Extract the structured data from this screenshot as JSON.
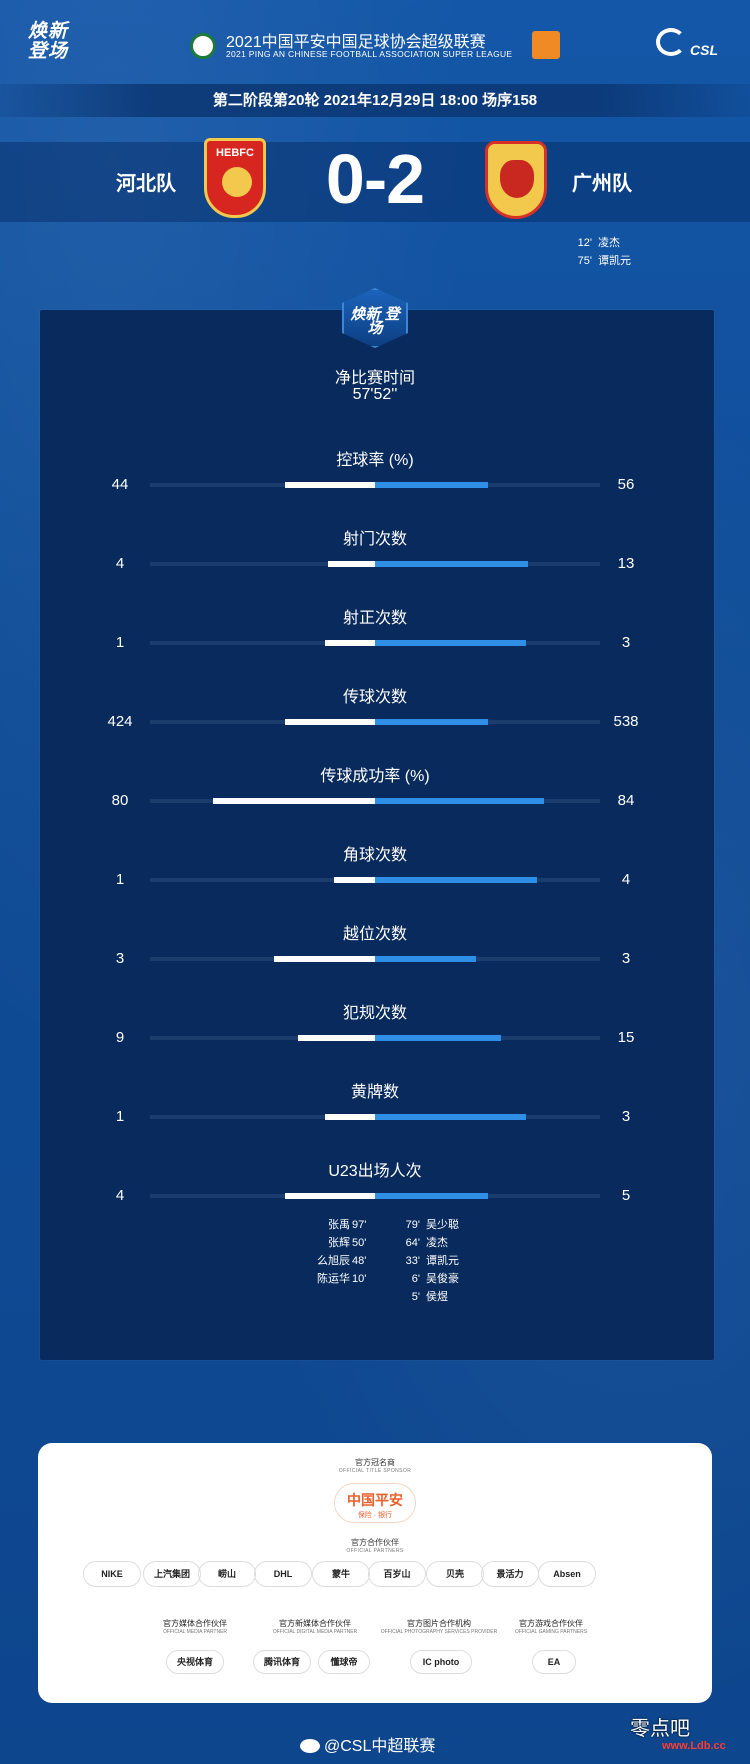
{
  "header": {
    "left_logo": "焕新 登场",
    "league_title": "2021中国平安中国足球协会超级联赛",
    "league_subtitle": "2021 PING AN CHINESE FOOTBALL ASSOCIATION SUPER LEAGUE",
    "right_logo": "CSL"
  },
  "match": {
    "info": "第二阶段第20轮  2021年12月29日 18:00 场序158",
    "home_team": "河北队",
    "away_team": "广州队",
    "home_crest_text": "HEBFC",
    "score": "0-2",
    "scorers": [
      {
        "minute": "12'",
        "name": "凌杰"
      },
      {
        "minute": "75'",
        "name": "谭凯元"
      }
    ]
  },
  "panel": {
    "emblem": "焕新 登场",
    "net_time_label": "净比赛时间",
    "net_time_value": "57'52''"
  },
  "stats": [
    {
      "label": "控球率 (%)",
      "home": "44",
      "away": "56",
      "home_val": 44,
      "away_val": 56
    },
    {
      "label": "射门次数",
      "home": "4",
      "away": "13",
      "home_val": 4,
      "away_val": 13
    },
    {
      "label": "射正次数",
      "home": "1",
      "away": "3",
      "home_val": 1,
      "away_val": 3
    },
    {
      "label": "传球次数",
      "home": "424",
      "away": "538",
      "home_val": 424,
      "away_val": 538
    },
    {
      "label": "传球成功率 (%)",
      "home": "80",
      "away": "84",
      "home_val": 80,
      "away_val": 84
    },
    {
      "label": "角球次数",
      "home": "1",
      "away": "4",
      "home_val": 1,
      "away_val": 4
    },
    {
      "label": "越位次数",
      "home": "3",
      "away": "3",
      "home_val": 3,
      "away_val": 3
    },
    {
      "label": "犯规次数",
      "home": "9",
      "away": "15",
      "home_val": 9,
      "away_val": 15
    },
    {
      "label": "黄牌数",
      "home": "1",
      "away": "3",
      "home_val": 1,
      "away_val": 3
    },
    {
      "label": "U23出场人次",
      "home": "4",
      "away": "5",
      "home_val": 4,
      "away_val": 5
    }
  ],
  "bar_fractions": [
    {
      "home": 0.4,
      "away": 0.5
    },
    {
      "home": 0.21,
      "away": 0.68
    },
    {
      "home": 0.22,
      "away": 0.67
    },
    {
      "home": 0.4,
      "away": 0.5
    },
    {
      "home": 0.72,
      "away": 0.75
    },
    {
      "home": 0.18,
      "away": 0.72
    },
    {
      "home": 0.45,
      "away": 0.45
    },
    {
      "home": 0.34,
      "away": 0.56
    },
    {
      "home": 0.22,
      "away": 0.67
    },
    {
      "home": 0.4,
      "away": 0.5
    }
  ],
  "u23": {
    "home": [
      {
        "name": "张禹",
        "minute": "97'"
      },
      {
        "name": "张辉",
        "minute": "50'"
      },
      {
        "name": "么旭辰",
        "minute": "48'"
      },
      {
        "name": "陈运华",
        "minute": "10'"
      }
    ],
    "away": [
      {
        "minute": "79'",
        "name": "吴少聪"
      },
      {
        "minute": "64'",
        "name": "凌杰"
      },
      {
        "minute": "33'",
        "name": "谭凯元"
      },
      {
        "minute": "6'",
        "name": "吴俊豪"
      },
      {
        "minute": "5'",
        "name": "侯煜"
      }
    ]
  },
  "sponsors": {
    "title_sponsor_head": "官方冠名商",
    "title_sponsor_head_en": "OFFICIAL TITLE SPONSOR",
    "title_sponsor": "中国平安",
    "title_sponsor_sub": "保险 · 银行",
    "partners_head": "官方合作伙伴",
    "partners_head_en": "OFFICIAL PARTNERS",
    "partners": [
      "NIKE",
      "上汽集团",
      "崂山",
      "DHL",
      "蒙牛",
      "百岁山",
      "贝壳",
      "景活力",
      "Absen"
    ],
    "media_heads": [
      {
        "cn": "官方媒体合作伙伴",
        "en": "OFFICIAL MEDIA PARTNER"
      },
      {
        "cn": "官方新媒体合作伙伴",
        "en": "OFFICIAL DIGITAL MEDIA PARTNER"
      },
      {
        "cn": "官方图片合作机构",
        "en": "OFFICIAL PHOTOGRAPHY SERVICES PROVIDER"
      },
      {
        "cn": "官方游戏合作伙伴",
        "en": "OFFICIAL GAMING PARTNERS"
      }
    ],
    "media_logos": [
      "央视体育",
      "腾讯体育",
      "懂球帝",
      "IC photo",
      "EA"
    ]
  },
  "footer": {
    "handle": "@CSL中超联赛",
    "watermark": "零点吧",
    "watermark_url": "www.Ldb.cc"
  },
  "colors": {
    "background": "#0f4d9a",
    "panel": "#082a5c",
    "home_bar": "#ffffff",
    "away_bar": "#2f8fe6"
  }
}
